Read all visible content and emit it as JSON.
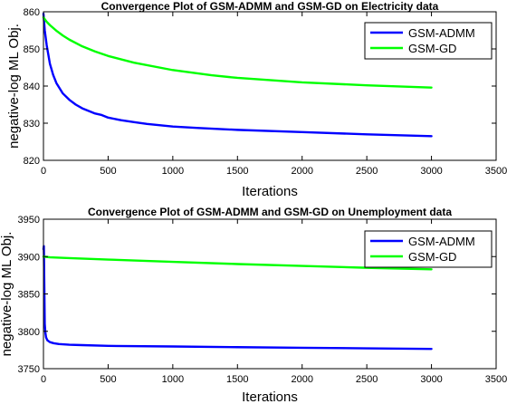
{
  "chart_data": [
    {
      "type": "line",
      "title": "Convergence Plot of GSM-ADMM and GSM-GD on Electricity data",
      "xlabel": "Iterations",
      "ylabel": "negative-log ML Obj.",
      "xlim": [
        0,
        3500
      ],
      "ylim": [
        820,
        860
      ],
      "xticks": [
        0,
        500,
        1000,
        1500,
        2000,
        2500,
        3000,
        3500
      ],
      "yticks": [
        820,
        830,
        840,
        850,
        860
      ],
      "legend_position": "top-right",
      "grid": false,
      "series": [
        {
          "name": "GSM-ADMM",
          "color": "#0000ff",
          "x": [
            0,
            10,
            25,
            50,
            75,
            100,
            150,
            200,
            250,
            300,
            400,
            450,
            500,
            600,
            700,
            800,
            1000,
            1200,
            1500,
            2000,
            2500,
            3000
          ],
          "y": [
            859.5,
            855,
            851,
            846,
            843,
            840.8,
            838,
            836.3,
            835,
            834,
            832.6,
            832.2,
            831.5,
            830.8,
            830.3,
            829.8,
            829.1,
            828.7,
            828.2,
            827.6,
            827.0,
            826.5
          ]
        },
        {
          "name": "GSM-GD",
          "color": "#00ff00",
          "x": [
            0,
            25,
            50,
            100,
            150,
            200,
            300,
            400,
            500,
            700,
            1000,
            1300,
            1500,
            2000,
            2500,
            3000
          ],
          "y": [
            858.5,
            857.3,
            856.4,
            854.9,
            853.6,
            852.5,
            850.7,
            849.3,
            848.1,
            846.3,
            844.3,
            842.9,
            842.2,
            841.0,
            840.2,
            839.6
          ]
        }
      ]
    },
    {
      "type": "line",
      "title": "Convergence Plot of GSM-ADMM and GSM-GD on Unemployment data",
      "xlabel": "Iterations",
      "ylabel": "negative-log ML Obj.",
      "xlim": [
        0,
        3500
      ],
      "ylim": [
        3750,
        3950
      ],
      "xticks": [
        0,
        500,
        1000,
        1500,
        2000,
        2500,
        3000,
        3500
      ],
      "yticks": [
        3750,
        3800,
        3850,
        3900,
        3950
      ],
      "legend_position": "top-right",
      "grid": false,
      "series": [
        {
          "name": "GSM-ADMM",
          "color": "#0000ff",
          "x": [
            0,
            3,
            6,
            10,
            15,
            20,
            30,
            50,
            80,
            120,
            200,
            300,
            500,
            1000,
            1500,
            2000,
            2500,
            3000
          ],
          "y": [
            3910,
            3914,
            3870,
            3810,
            3798,
            3792,
            3788,
            3785.5,
            3784,
            3783,
            3782,
            3781.5,
            3780.5,
            3779.7,
            3778.8,
            3778,
            3777.2,
            3776.5
          ]
        },
        {
          "name": "GSM-GD",
          "color": "#00ff00",
          "x": [
            0,
            50,
            200,
            500,
            1000,
            1500,
            2000,
            2500,
            3000
          ],
          "y": [
            3900,
            3899,
            3898,
            3896,
            3893,
            3890,
            3887.5,
            3885,
            3883
          ]
        }
      ]
    }
  ]
}
